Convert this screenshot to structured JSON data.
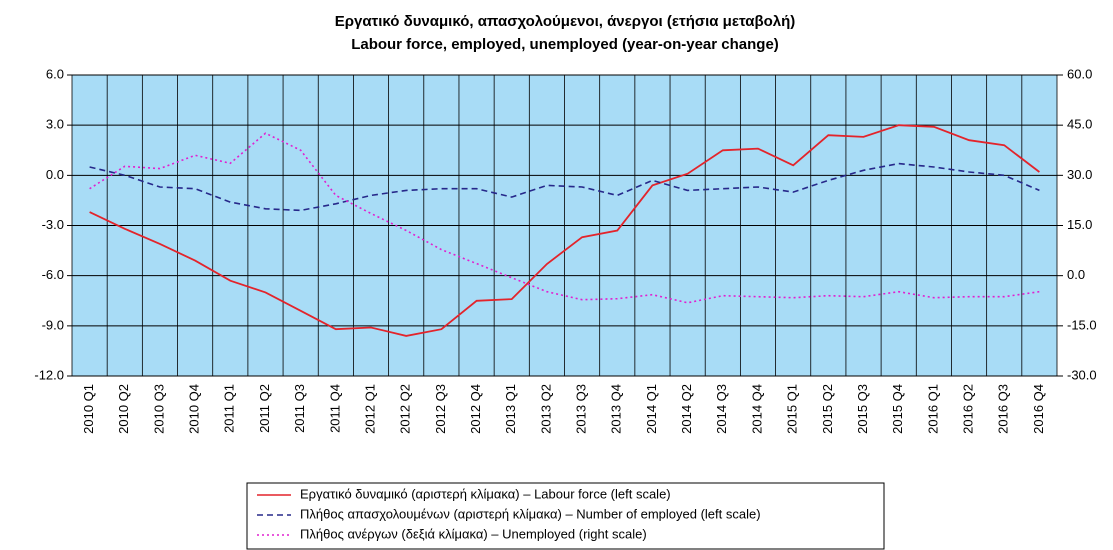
{
  "chart_data": {
    "type": "line",
    "title": "Εργατικό δυναμικό, απασχολούμενοι, άνεργοι (ετήσια μεταβολή)",
    "subtitle": "Labour force, employed, unemployed (year-on-year change)",
    "categories": [
      "2010 Q1",
      "2010 Q2",
      "2010 Q3",
      "2010 Q4",
      "2011 Q1",
      "2011 Q2",
      "2011 Q3",
      "2011 Q4",
      "2012 Q1",
      "2012 Q2",
      "2012 Q3",
      "2012 Q4",
      "2013 Q1",
      "2013 Q2",
      "2013 Q3",
      "2013 Q4",
      "2014 Q1",
      "2014 Q2",
      "2014 Q3",
      "2014 Q4",
      "2015 Q1",
      "2015 Q2",
      "2015 Q3",
      "2015 Q4",
      "2016 Q1",
      "2016 Q2",
      "2016 Q3",
      "2016 Q4"
    ],
    "series": [
      {
        "name": "Εργατικό δυναμικό (αριστερή κλίμακα) – Labour force (left scale)",
        "color": "#e3242b",
        "style": "solid",
        "values": [
          -2.2,
          -3.2,
          -4.1,
          -5.1,
          -6.3,
          -7.0,
          -8.1,
          -9.2,
          -9.1,
          -9.6,
          -9.2,
          -7.5,
          -7.4,
          -5.3,
          -3.7,
          -3.3,
          -0.6,
          0.1,
          1.5,
          1.6,
          0.6,
          2.4,
          2.3,
          3.0,
          2.9,
          2.1,
          1.8,
          0.2
        ]
      },
      {
        "name": "Πλήθος απασχολουμένων (αριστερή κλίμακα) – Number of employed (left scale)",
        "color": "#26288a",
        "style": "dashed",
        "values": [
          0.5,
          0.0,
          -0.7,
          -0.8,
          -1.6,
          -2.0,
          -2.1,
          -1.7,
          -1.2,
          -0.9,
          -0.8,
          -0.8,
          -1.3,
          -0.6,
          -0.7,
          -1.2,
          -0.3,
          -0.9,
          -0.8,
          -0.7,
          -1.0,
          -0.3,
          0.3,
          0.7,
          0.5,
          0.2,
          0.0,
          -0.9
        ]
      },
      {
        "name": "Πλήθος ανέργων (δεξιά κλίμακα) – Unemployed  (right scale)",
        "color": "#e020d0",
        "style": "dotted",
        "axis": "y2",
        "values": [
          26,
          32.7,
          32,
          36,
          33.6,
          42.6,
          37.5,
          24,
          18.6,
          13.5,
          7.8,
          3.6,
          -0.6,
          -4.8,
          -7.2,
          -6.9,
          -5.7,
          -8.1,
          -6,
          -6.3,
          -6.6,
          -6,
          -6.3,
          -4.8,
          -6.6,
          -6.3,
          -6.3,
          -4.8
        ]
      }
    ],
    "ylim": [
      -12,
      6
    ],
    "yticks": [
      {
        "value": -12,
        "label": "-12.0"
      },
      {
        "value": -9,
        "label": "-9.0"
      },
      {
        "value": -6,
        "label": "-6.0"
      },
      {
        "value": -3,
        "label": "-3.0"
      },
      {
        "value": 0,
        "label": "0.0"
      },
      {
        "value": 3,
        "label": "3.0"
      },
      {
        "value": 6,
        "label": "6.0"
      }
    ],
    "y2lim": [
      -30,
      60
    ],
    "y2ticks": [
      {
        "value": -30,
        "label": "-30.0"
      },
      {
        "value": -15,
        "label": "-15.0"
      },
      {
        "value": 0,
        "label": "0.0"
      },
      {
        "value": 15,
        "label": "15.0"
      },
      {
        "value": 30,
        "label": "30.0"
      },
      {
        "value": 45,
        "label": "45.0"
      },
      {
        "value": 60,
        "label": "60.0"
      }
    ],
    "background": "#a8dcf6",
    "grid": true
  }
}
